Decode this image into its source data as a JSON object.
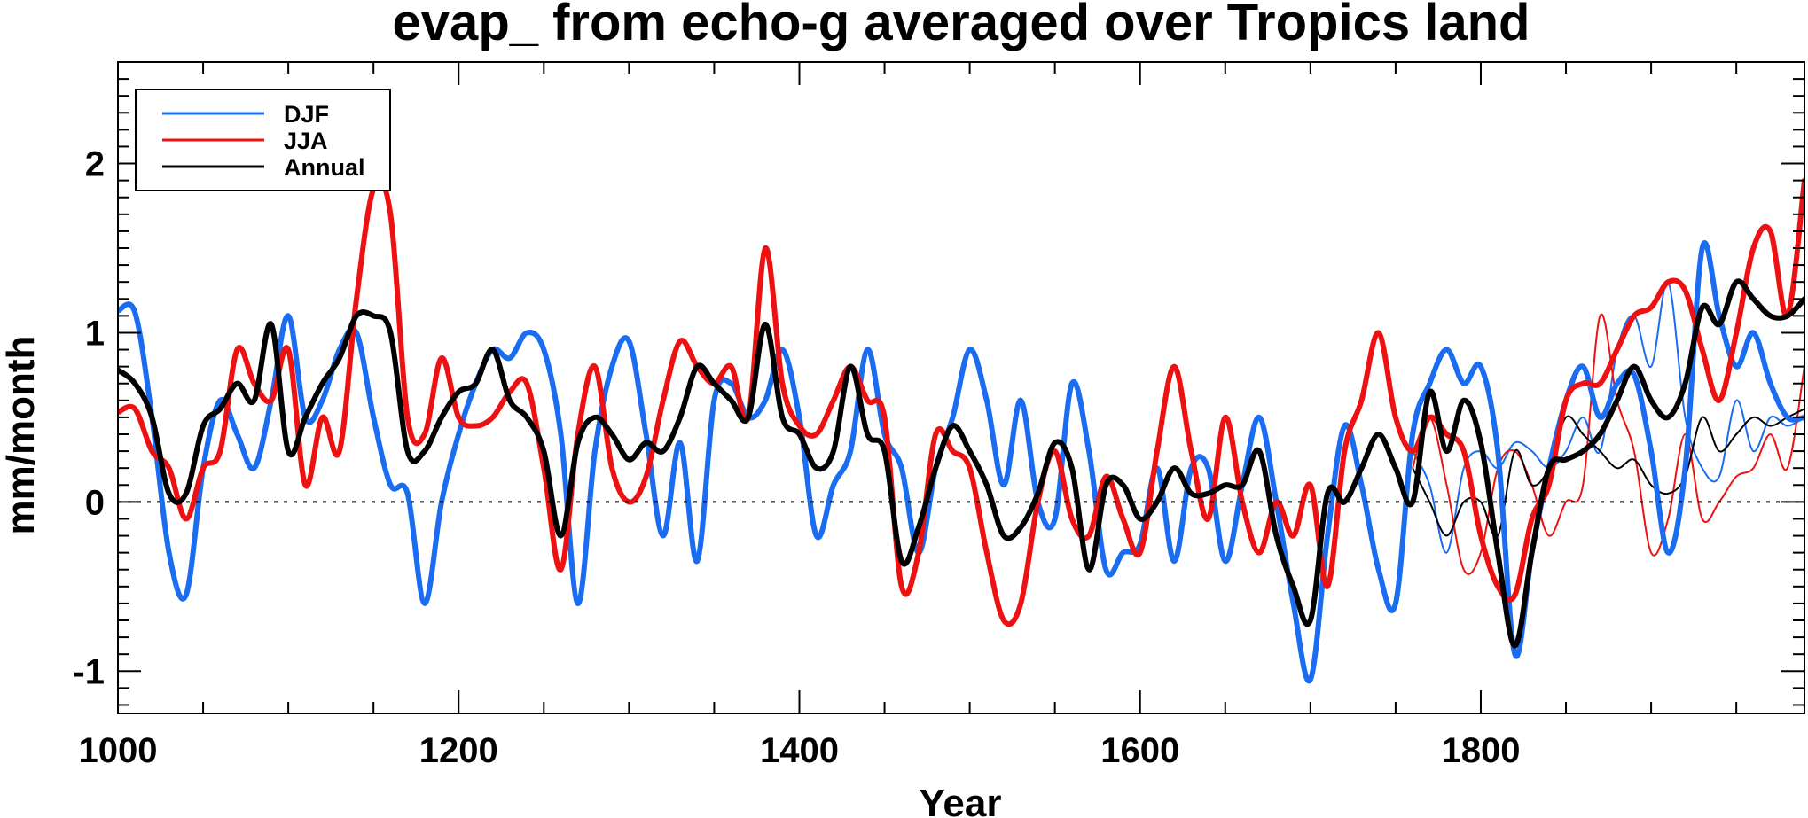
{
  "chart_data": {
    "type": "line",
    "title": "evap_ from echo-g averaged over Tropics land",
    "xlabel": "Year",
    "ylabel": "mm/month",
    "xlim": [
      1000,
      1990
    ],
    "ylim": [
      -1.25,
      2.6
    ],
    "x_ticks": [
      1000,
      1200,
      1400,
      1600,
      1800
    ],
    "x_tick_labels": [
      "1000",
      "1200",
      "1400",
      "1600",
      "1800"
    ],
    "y_ticks": [
      -1,
      0,
      1,
      2
    ],
    "y_tick_labels": [
      "-1",
      "0",
      "1",
      "2"
    ],
    "zero_line": true,
    "legend_position": "top-left",
    "colors": {
      "DJF": "#1a6cf0",
      "JJA": "#ee1111",
      "Annual": "#000000"
    },
    "x": [
      1000,
      1010,
      1020,
      1030,
      1040,
      1050,
      1060,
      1070,
      1080,
      1090,
      1100,
      1110,
      1120,
      1130,
      1140,
      1150,
      1160,
      1170,
      1180,
      1190,
      1200,
      1210,
      1220,
      1230,
      1240,
      1250,
      1260,
      1270,
      1280,
      1290,
      1300,
      1310,
      1320,
      1330,
      1340,
      1350,
      1360,
      1370,
      1380,
      1390,
      1400,
      1410,
      1420,
      1430,
      1440,
      1450,
      1460,
      1470,
      1480,
      1490,
      1500,
      1510,
      1520,
      1530,
      1540,
      1550,
      1560,
      1570,
      1580,
      1590,
      1600,
      1610,
      1620,
      1630,
      1640,
      1650,
      1660,
      1670,
      1680,
      1690,
      1700,
      1710,
      1720,
      1730,
      1740,
      1750,
      1760,
      1770,
      1780,
      1790,
      1800,
      1810,
      1820,
      1830,
      1840,
      1850,
      1860,
      1870,
      1880,
      1890,
      1900,
      1910,
      1920,
      1930,
      1940,
      1950,
      1960,
      1970,
      1980,
      1990
    ],
    "series": [
      {
        "name": "DJF",
        "values": [
          1.13,
          1.12,
          0.5,
          -0.3,
          -0.55,
          0.2,
          0.6,
          0.4,
          0.2,
          0.6,
          1.1,
          0.5,
          0.6,
          0.9,
          1.0,
          0.5,
          0.1,
          0.05,
          -0.6,
          0.0,
          0.4,
          0.7,
          0.9,
          0.85,
          1.0,
          0.9,
          0.4,
          -0.6,
          0.3,
          0.8,
          0.95,
          0.4,
          -0.2,
          0.35,
          -0.35,
          0.6,
          0.7,
          0.5,
          0.6,
          0.9,
          0.5,
          -0.2,
          0.1,
          0.3,
          0.9,
          0.4,
          0.2,
          -0.3,
          0.2,
          0.5,
          0.9,
          0.6,
          0.1,
          0.6,
          0.0,
          -0.1,
          0.7,
          0.3,
          -0.4,
          -0.3,
          -0.25,
          0.2,
          -0.35,
          0.2,
          0.2,
          -0.35,
          0.1,
          0.5,
          0.0,
          -0.6,
          -1.05,
          -0.2,
          0.45,
          0.1,
          -0.4,
          -0.6,
          0.4,
          0.7,
          0.9,
          0.7,
          0.8,
          0.3,
          -0.9,
          -0.3,
          0.2,
          0.6,
          0.8,
          0.5,
          0.7,
          0.75,
          0.3,
          -0.3,
          0.2,
          1.5,
          1.1,
          0.8,
          1.0,
          0.7,
          0.5,
          0.5
        ]
      },
      {
        "name": "JJA",
        "values": [
          0.53,
          0.55,
          0.3,
          0.2,
          -0.1,
          0.2,
          0.3,
          0.9,
          0.7,
          0.6,
          0.9,
          0.1,
          0.5,
          0.3,
          1.2,
          1.85,
          1.7,
          0.5,
          0.4,
          0.85,
          0.5,
          0.45,
          0.5,
          0.65,
          0.7,
          0.2,
          -0.4,
          0.4,
          0.8,
          0.2,
          0.0,
          0.15,
          0.6,
          0.95,
          0.8,
          0.7,
          0.8,
          0.5,
          1.5,
          0.7,
          0.45,
          0.4,
          0.6,
          0.8,
          0.6,
          0.5,
          -0.5,
          -0.3,
          0.4,
          0.3,
          0.2,
          -0.3,
          -0.7,
          -0.6,
          0.0,
          0.3,
          -0.1,
          -0.2,
          0.15,
          -0.1,
          -0.3,
          0.3,
          0.8,
          0.3,
          -0.1,
          0.5,
          0.0,
          -0.3,
          0.0,
          -0.2,
          0.1,
          -0.5,
          0.3,
          0.6,
          1.0,
          0.5,
          0.3,
          0.5,
          0.4,
          0.3,
          -0.2,
          -0.5,
          -0.55,
          -0.1,
          0.1,
          0.6,
          0.7,
          0.7,
          0.9,
          1.1,
          1.15,
          1.3,
          1.25,
          0.9,
          0.6,
          1.0,
          1.5,
          1.6,
          1.1,
          1.9
        ]
      },
      {
        "name": "Annual",
        "values": [
          0.78,
          0.7,
          0.5,
          0.05,
          0.05,
          0.45,
          0.55,
          0.7,
          0.6,
          1.05,
          0.3,
          0.5,
          0.7,
          0.85,
          1.1,
          1.1,
          1.0,
          0.3,
          0.3,
          0.5,
          0.65,
          0.7,
          0.9,
          0.6,
          0.5,
          0.3,
          -0.2,
          0.35,
          0.5,
          0.4,
          0.25,
          0.35,
          0.3,
          0.5,
          0.8,
          0.7,
          0.6,
          0.5,
          1.05,
          0.5,
          0.4,
          0.2,
          0.3,
          0.8,
          0.4,
          0.3,
          -0.35,
          -0.15,
          0.2,
          0.45,
          0.3,
          0.1,
          -0.2,
          -0.15,
          0.05,
          0.35,
          0.2,
          -0.4,
          0.1,
          0.1,
          -0.1,
          0.0,
          0.2,
          0.05,
          0.05,
          0.1,
          0.1,
          0.3,
          -0.2,
          -0.5,
          -0.7,
          0.05,
          0.0,
          0.2,
          0.4,
          0.2,
          0.0,
          0.65,
          0.3,
          0.6,
          0.35,
          -0.3,
          -0.85,
          -0.3,
          0.2,
          0.25,
          0.3,
          0.4,
          0.6,
          0.8,
          0.6,
          0.5,
          0.7,
          1.15,
          1.05,
          1.3,
          1.2,
          1.1,
          1.1,
          1.2
        ]
      }
    ],
    "thin_series_x": [
      1760,
      1770,
      1780,
      1790,
      1800,
      1810,
      1820,
      1830,
      1840,
      1850,
      1860,
      1870,
      1880,
      1890,
      1900,
      1910,
      1920,
      1930,
      1940,
      1950,
      1960,
      1970,
      1980,
      1990
    ],
    "thin_series": [
      {
        "name": "DJF",
        "values": [
          0.3,
          0.1,
          -0.3,
          0.2,
          0.3,
          0.2,
          0.35,
          0.3,
          0.2,
          0.3,
          0.5,
          0.3,
          0.9,
          1.1,
          0.8,
          1.3,
          0.5,
          0.2,
          0.15,
          0.6,
          0.3,
          0.5,
          0.45,
          0.5
        ]
      },
      {
        "name": "JJA",
        "values": [
          0.2,
          0.5,
          0.1,
          -0.4,
          -0.3,
          0.2,
          0.3,
          0.1,
          -0.2,
          0.0,
          0.1,
          1.1,
          0.6,
          0.3,
          -0.3,
          -0.1,
          0.4,
          -0.1,
          0.0,
          0.15,
          0.2,
          0.4,
          0.2,
          0.8
        ]
      },
      {
        "name": "Annual",
        "values": [
          0.2,
          0.0,
          -0.2,
          0.0,
          0.0,
          -0.2,
          0.3,
          0.1,
          0.2,
          0.5,
          0.4,
          0.3,
          0.2,
          0.25,
          0.1,
          0.05,
          0.15,
          0.5,
          0.3,
          0.4,
          0.5,
          0.45,
          0.5,
          0.55
        ]
      }
    ],
    "legend": [
      {
        "label": "DJF",
        "series": "DJF"
      },
      {
        "label": "JJA",
        "series": "JJA"
      },
      {
        "label": "Annual",
        "series": "Annual"
      }
    ]
  }
}
